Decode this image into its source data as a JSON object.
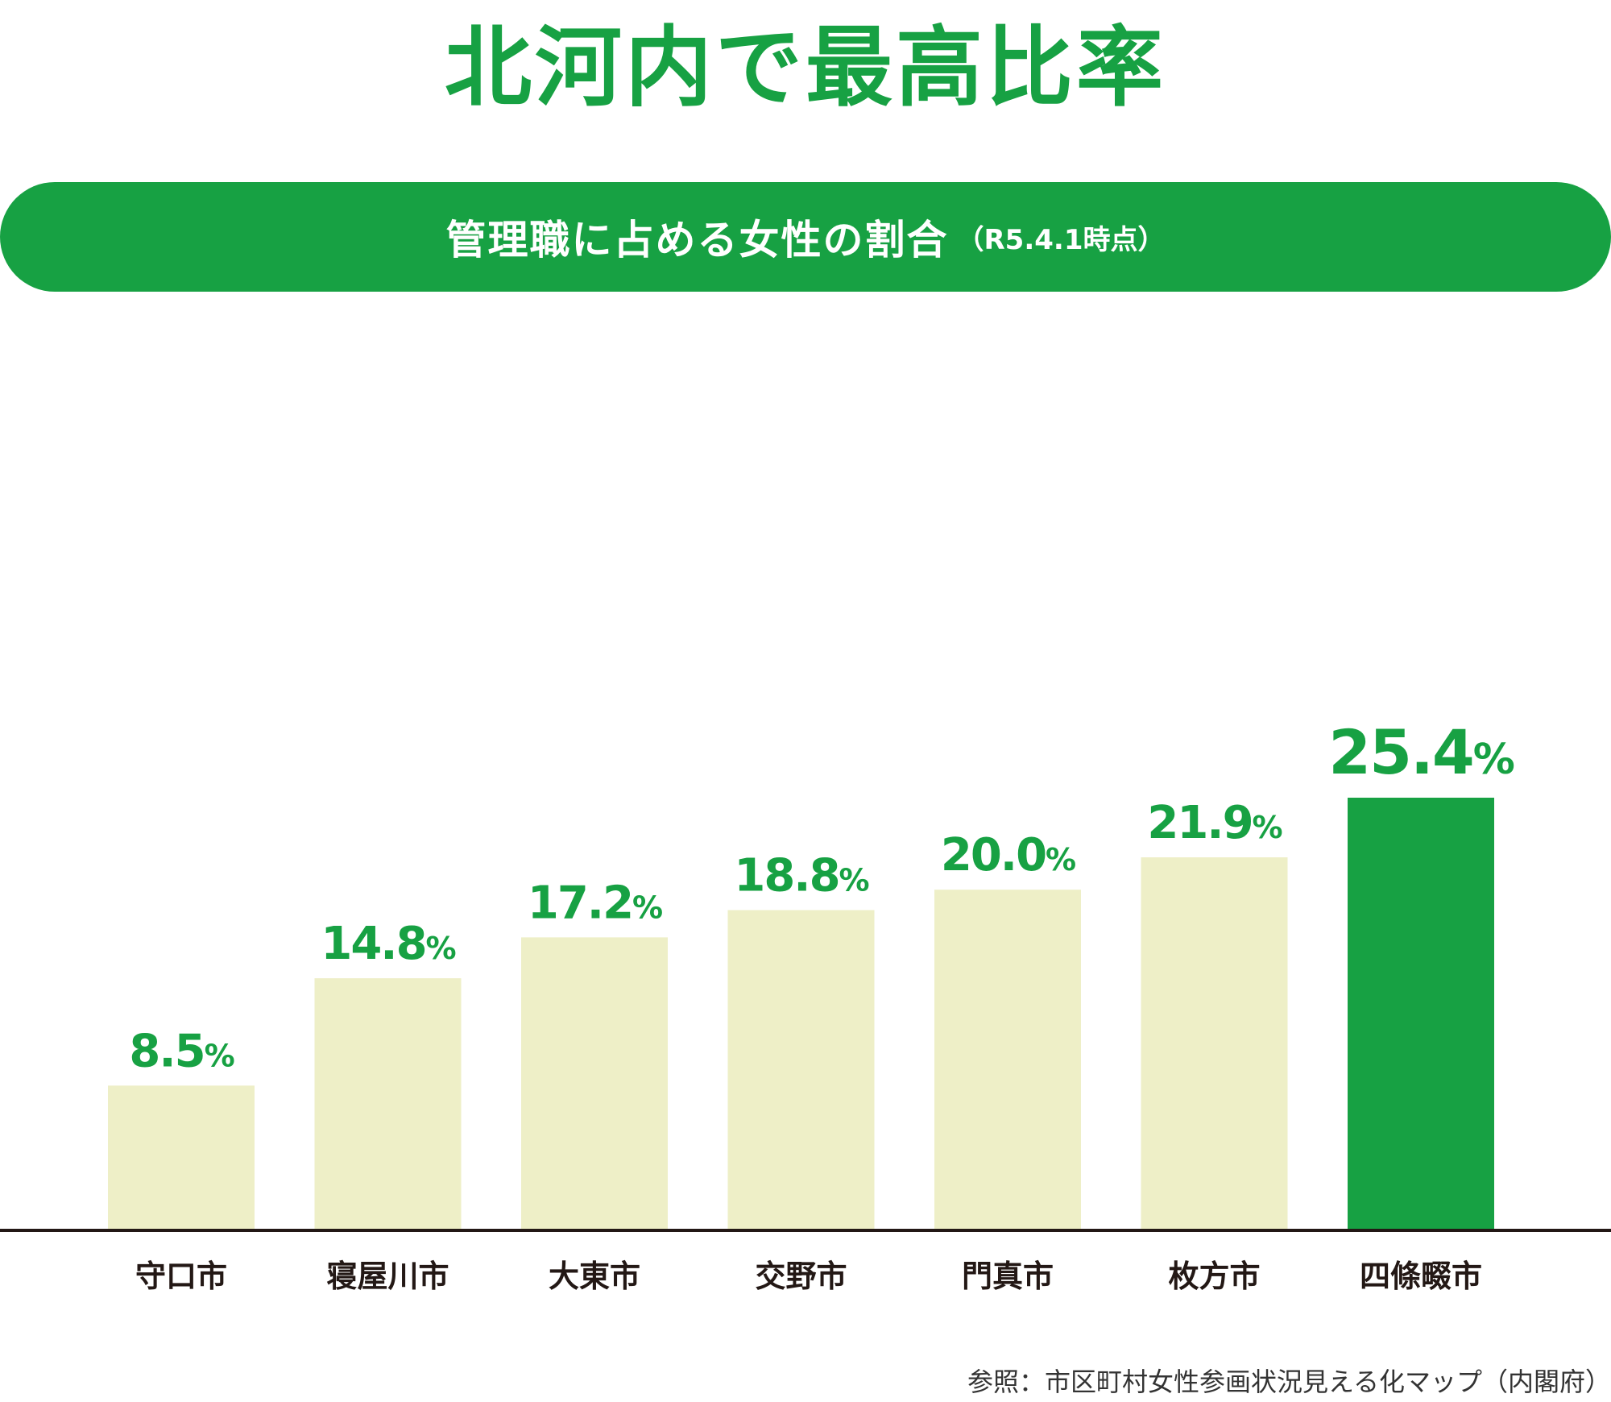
{
  "header": {
    "title": "北河内で最高比率",
    "banner_main": "管理職に占める女性の割合",
    "banner_sub": "（R5.4.1時点）"
  },
  "colors": {
    "accent": "#17a143",
    "bar_default": "#eeefc7",
    "axis": "#231815",
    "category_text": "#231815"
  },
  "chart_data": {
    "type": "bar",
    "categories": [
      "守口市",
      "寝屋川市",
      "大東市",
      "交野市",
      "門真市",
      "枚方市",
      "四條畷市"
    ],
    "values": [
      8.5,
      14.8,
      17.2,
      18.8,
      20.0,
      21.9,
      25.4
    ],
    "value_labels": [
      "8.5",
      "14.8",
      "17.2",
      "18.8",
      "20.0",
      "21.9",
      "25.4"
    ],
    "unit": "%",
    "highlight_index": 6,
    "title": "北河内で最高比率",
    "subtitle": "管理職に占める女性の割合（R5.4.1時点）",
    "ylim": [
      0,
      25.4
    ],
    "grid": false
  },
  "footer": {
    "source": "参照：市区町村女性参画状況見える化マップ（内閣府）"
  }
}
